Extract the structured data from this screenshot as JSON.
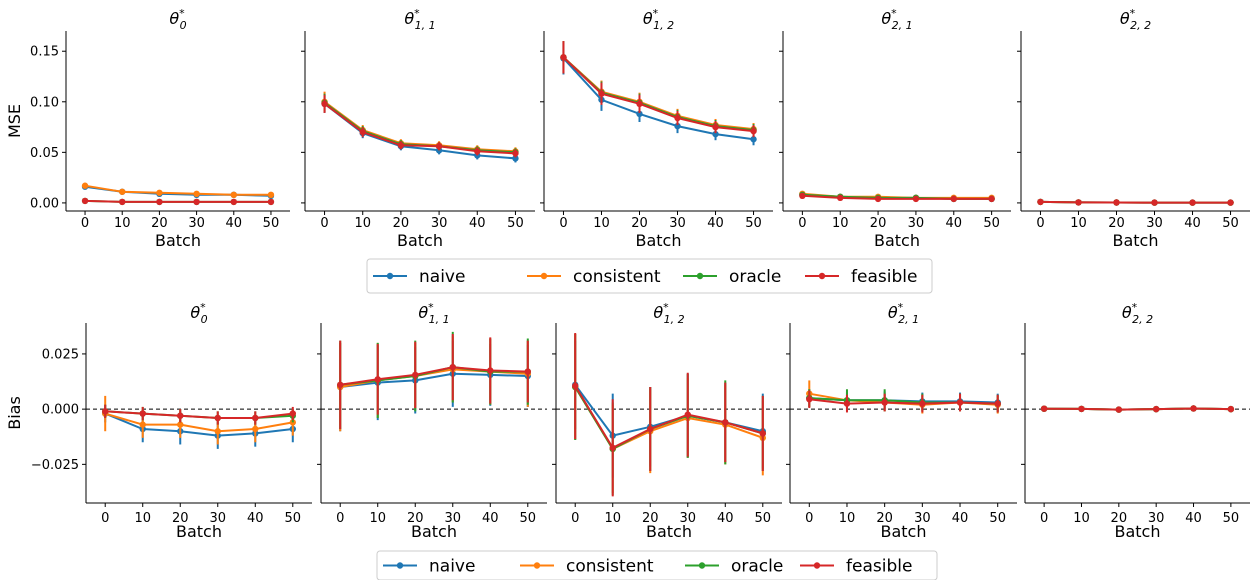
{
  "colors": {
    "naive": "#1f77b4",
    "consistent": "#ff7f0e",
    "oracle": "#2ca02c",
    "feasible": "#d62728"
  },
  "legend": [
    "naive",
    "consistent",
    "oracle",
    "feasible"
  ],
  "chart_data": [
    {
      "row": "mse",
      "type": "line",
      "ylabel": "MSE",
      "xlabel": "Batch",
      "x": [
        0,
        10,
        20,
        30,
        40,
        50
      ],
      "ylim": [
        -0.008,
        0.17
      ],
      "yticks": [
        0.0,
        0.05,
        0.1,
        0.15
      ],
      "ytick_labels": [
        "0.00",
        "0.05",
        "0.10",
        "0.15"
      ],
      "reference_line": null,
      "panels": [
        {
          "title_base": "θ",
          "title_sub": "0",
          "title_sup": "*",
          "show_yticks": true,
          "series": [
            {
              "name": "naive",
              "values": [
                0.016,
                0.011,
                0.009,
                0.008,
                0.008,
                0.007
              ],
              "err": [
                0.001,
                0.001,
                0.001,
                0.001,
                0.001,
                0.001
              ]
            },
            {
              "name": "consistent",
              "values": [
                0.017,
                0.011,
                0.01,
                0.009,
                0.008,
                0.008
              ],
              "err": [
                0.001,
                0.001,
                0.001,
                0.001,
                0.001,
                0.001
              ]
            },
            {
              "name": "oracle",
              "values": [
                0.002,
                0.001,
                0.001,
                0.001,
                0.001,
                0.001
              ],
              "err": [
                0.0005,
                0.0005,
                0.0005,
                0.0005,
                0.0005,
                0.0005
              ]
            },
            {
              "name": "feasible",
              "values": [
                0.002,
                0.001,
                0.001,
                0.001,
                0.001,
                0.001
              ],
              "err": [
                0.0005,
                0.0005,
                0.0005,
                0.0005,
                0.0005,
                0.0005
              ]
            }
          ]
        },
        {
          "title_base": "θ",
          "title_sub": "1, 1",
          "title_sup": "*",
          "show_yticks": false,
          "series": [
            {
              "name": "naive",
              "values": [
                0.098,
                0.069,
                0.056,
                0.052,
                0.047,
                0.044
              ],
              "err": [
                0.009,
                0.005,
                0.004,
                0.004,
                0.004,
                0.004
              ]
            },
            {
              "name": "consistent",
              "values": [
                0.1,
                0.072,
                0.059,
                0.057,
                0.053,
                0.051
              ],
              "err": [
                0.01,
                0.005,
                0.004,
                0.004,
                0.004,
                0.004
              ]
            },
            {
              "name": "oracle",
              "values": [
                0.099,
                0.071,
                0.058,
                0.056,
                0.052,
                0.05
              ],
              "err": [
                0.009,
                0.005,
                0.004,
                0.004,
                0.004,
                0.004
              ]
            },
            {
              "name": "feasible",
              "values": [
                0.098,
                0.07,
                0.057,
                0.056,
                0.051,
                0.049
              ],
              "err": [
                0.009,
                0.005,
                0.004,
                0.004,
                0.004,
                0.004
              ]
            }
          ]
        },
        {
          "title_base": "θ",
          "title_sub": "1, 2",
          "title_sup": "*",
          "show_yticks": false,
          "series": [
            {
              "name": "naive",
              "values": [
                0.143,
                0.102,
                0.088,
                0.076,
                0.068,
                0.063
              ],
              "err": [
                0.016,
                0.011,
                0.008,
                0.007,
                0.006,
                0.006
              ]
            },
            {
              "name": "consistent",
              "values": [
                0.144,
                0.11,
                0.1,
                0.086,
                0.077,
                0.073
              ],
              "err": [
                0.016,
                0.011,
                0.009,
                0.007,
                0.006,
                0.006
              ]
            },
            {
              "name": "oracle",
              "values": [
                0.144,
                0.109,
                0.099,
                0.085,
                0.076,
                0.072
              ],
              "err": [
                0.016,
                0.011,
                0.009,
                0.007,
                0.006,
                0.006
              ]
            },
            {
              "name": "feasible",
              "values": [
                0.144,
                0.108,
                0.098,
                0.084,
                0.075,
                0.071
              ],
              "err": [
                0.016,
                0.011,
                0.009,
                0.007,
                0.006,
                0.006
              ]
            }
          ]
        },
        {
          "title_base": "θ",
          "title_sub": "2, 1",
          "title_sup": "*",
          "show_yticks": false,
          "series": [
            {
              "name": "naive",
              "values": [
                0.008,
                0.006,
                0.005,
                0.005,
                0.004,
                0.004
              ],
              "err": [
                0.001,
                0.001,
                0.001,
                0.001,
                0.001,
                0.001
              ]
            },
            {
              "name": "consistent",
              "values": [
                0.009,
                0.006,
                0.006,
                0.005,
                0.005,
                0.005
              ],
              "err": [
                0.001,
                0.001,
                0.001,
                0.001,
                0.001,
                0.001
              ]
            },
            {
              "name": "oracle",
              "values": [
                0.008,
                0.006,
                0.005,
                0.005,
                0.004,
                0.004
              ],
              "err": [
                0.001,
                0.001,
                0.001,
                0.001,
                0.001,
                0.001
              ]
            },
            {
              "name": "feasible",
              "values": [
                0.007,
                0.005,
                0.004,
                0.004,
                0.004,
                0.004
              ],
              "err": [
                0.001,
                0.001,
                0.001,
                0.001,
                0.001,
                0.001
              ]
            }
          ]
        },
        {
          "title_base": "θ",
          "title_sub": "2, 2",
          "title_sup": "*",
          "show_yticks": false,
          "series": [
            {
              "name": "naive",
              "values": [
                0.001,
                0.0005,
                0.0004,
                0.0003,
                0.0003,
                0.0003
              ],
              "err": [
                0.0002,
                0.0001,
                0.0001,
                0.0001,
                0.0001,
                0.0001
              ]
            },
            {
              "name": "consistent",
              "values": [
                0.001,
                0.0005,
                0.0004,
                0.0003,
                0.0003,
                0.0003
              ],
              "err": [
                0.0002,
                0.0001,
                0.0001,
                0.0001,
                0.0001,
                0.0001
              ]
            },
            {
              "name": "oracle",
              "values": [
                0.001,
                0.0005,
                0.0004,
                0.0003,
                0.0003,
                0.0003
              ],
              "err": [
                0.0002,
                0.0001,
                0.0001,
                0.0001,
                0.0001,
                0.0001
              ]
            },
            {
              "name": "feasible",
              "values": [
                0.001,
                0.0005,
                0.0004,
                0.0003,
                0.0003,
                0.0003
              ],
              "err": [
                0.0002,
                0.0001,
                0.0001,
                0.0001,
                0.0001,
                0.0001
              ]
            }
          ]
        }
      ]
    },
    {
      "row": "bias",
      "type": "line",
      "ylabel": "Bias",
      "xlabel": "Batch",
      "x": [
        0,
        10,
        20,
        30,
        40,
        50
      ],
      "ylim": [
        -0.0425,
        0.039
      ],
      "yticks": [
        -0.025,
        0.0,
        0.025
      ],
      "ytick_labels": [
        "−0.025",
        "0.000",
        "0.025"
      ],
      "reference_line": 0,
      "panels": [
        {
          "title_base": "θ",
          "title_sub": "0",
          "title_sup": "*",
          "show_yticks": true,
          "series": [
            {
              "name": "naive",
              "values": [
                -0.002,
                -0.009,
                -0.01,
                -0.012,
                -0.011,
                -0.009
              ],
              "err": [
                0.004,
                0.006,
                0.006,
                0.006,
                0.006,
                0.006
              ]
            },
            {
              "name": "consistent",
              "values": [
                -0.002,
                -0.007,
                -0.007,
                -0.01,
                -0.009,
                -0.006
              ],
              "err": [
                0.008,
                0.006,
                0.006,
                0.006,
                0.006,
                0.006
              ]
            },
            {
              "name": "oracle",
              "values": [
                -0.001,
                -0.002,
                -0.003,
                -0.004,
                -0.004,
                -0.003
              ],
              "err": [
                0.003,
                0.003,
                0.003,
                0.003,
                0.003,
                0.003
              ]
            },
            {
              "name": "feasible",
              "values": [
                -0.001,
                -0.002,
                -0.003,
                -0.004,
                -0.004,
                -0.002
              ],
              "err": [
                0.003,
                0.003,
                0.003,
                0.003,
                0.003,
                0.003
              ]
            }
          ]
        },
        {
          "title_base": "θ",
          "title_sub": "1, 1",
          "title_sup": "*",
          "show_yticks": false,
          "series": [
            {
              "name": "naive",
              "values": [
                0.01,
                0.012,
                0.013,
                0.016,
                0.0155,
                0.015
              ],
              "err": [
                0.02,
                0.017,
                0.015,
                0.015,
                0.014,
                0.014
              ]
            },
            {
              "name": "consistent",
              "values": [
                0.01,
                0.013,
                0.015,
                0.018,
                0.017,
                0.016
              ],
              "err": [
                0.02,
                0.017,
                0.015,
                0.015,
                0.015,
                0.015
              ]
            },
            {
              "name": "oracle",
              "values": [
                0.011,
                0.013,
                0.015,
                0.019,
                0.017,
                0.017
              ],
              "err": [
                0.02,
                0.017,
                0.016,
                0.016,
                0.015,
                0.015
              ]
            },
            {
              "name": "feasible",
              "values": [
                0.011,
                0.0135,
                0.0155,
                0.019,
                0.0175,
                0.017
              ],
              "err": [
                0.02,
                0.016,
                0.015,
                0.015,
                0.015,
                0.014
              ]
            }
          ]
        },
        {
          "title_base": "θ",
          "title_sub": "1, 2",
          "title_sup": "*",
          "show_yticks": false,
          "series": [
            {
              "name": "naive",
              "values": [
                0.011,
                -0.012,
                -0.008,
                -0.003,
                -0.006,
                -0.01
              ],
              "err": [
                0.02,
                0.019,
                0.018,
                0.019,
                0.018,
                0.017
              ]
            },
            {
              "name": "consistent",
              "values": [
                0.01,
                -0.018,
                -0.01,
                -0.004,
                -0.007,
                -0.013
              ],
              "err": [
                0.024,
                0.02,
                0.019,
                0.018,
                0.018,
                0.017
              ]
            },
            {
              "name": "oracle",
              "values": [
                0.01,
                -0.018,
                -0.009,
                -0.003,
                -0.006,
                -0.011
              ],
              "err": [
                0.024,
                0.021,
                0.019,
                0.019,
                0.019,
                0.017
              ]
            },
            {
              "name": "feasible",
              "values": [
                0.0105,
                -0.0175,
                -0.009,
                -0.0025,
                -0.006,
                -0.011
              ],
              "err": [
                0.024,
                0.022,
                0.019,
                0.019,
                0.018,
                0.017
              ]
            }
          ]
        },
        {
          "title_base": "θ",
          "title_sub": "2, 1",
          "title_sup": "*",
          "show_yticks": false,
          "series": [
            {
              "name": "naive",
              "values": [
                0.005,
                0.004,
                0.004,
                0.0035,
                0.0035,
                0.003
              ],
              "err": [
                0.004,
                0.004,
                0.004,
                0.004,
                0.004,
                0.004
              ]
            },
            {
              "name": "consistent",
              "values": [
                0.007,
                0.004,
                0.003,
                0.002,
                0.003,
                0.002
              ],
              "err": [
                0.006,
                0.004,
                0.004,
                0.004,
                0.004,
                0.004
              ]
            },
            {
              "name": "oracle",
              "values": [
                0.005,
                0.004,
                0.004,
                0.003,
                0.003,
                0.0025
              ],
              "err": [
                0.004,
                0.005,
                0.005,
                0.004,
                0.004,
                0.004
              ]
            },
            {
              "name": "feasible",
              "values": [
                0.0045,
                0.0025,
                0.003,
                0.0025,
                0.003,
                0.0025
              ],
              "err": [
                0.004,
                0.004,
                0.004,
                0.004,
                0.004,
                0.004
              ]
            }
          ]
        },
        {
          "title_base": "θ",
          "title_sub": "2, 2",
          "title_sup": "*",
          "show_yticks": false,
          "series": [
            {
              "name": "naive",
              "values": [
                0.0002,
                0.0001,
                -0.0002,
                0.0,
                0.0003,
                0.0
              ],
              "err": [
                0.0008,
                0.0008,
                0.0008,
                0.0008,
                0.0008,
                0.0008
              ]
            },
            {
              "name": "consistent",
              "values": [
                0.0002,
                0.0001,
                -0.0002,
                0.0,
                0.0003,
                0.0
              ],
              "err": [
                0.0008,
                0.0008,
                0.0008,
                0.0008,
                0.0008,
                0.0008
              ]
            },
            {
              "name": "oracle",
              "values": [
                0.0002,
                0.0001,
                -0.0002,
                0.0,
                0.0003,
                0.0
              ],
              "err": [
                0.0008,
                0.0008,
                0.0008,
                0.0008,
                0.0008,
                0.0008
              ]
            },
            {
              "name": "feasible",
              "values": [
                0.0002,
                0.0001,
                -0.0002,
                0.0,
                0.0003,
                0.0
              ],
              "err": [
                0.0008,
                0.0008,
                0.0008,
                0.0008,
                0.0008,
                0.0008
              ]
            }
          ]
        }
      ]
    }
  ]
}
